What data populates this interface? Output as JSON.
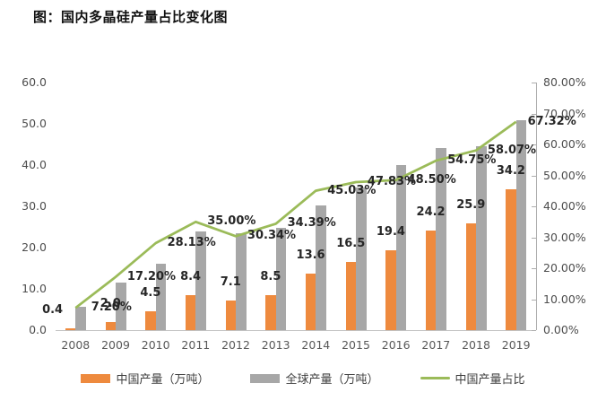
{
  "title": "图：国内多晶硅产量占比变化图",
  "chart_data": {
    "type": "bar",
    "subtype": "grouped-bars-with-line-combo",
    "categories": [
      "2008",
      "2009",
      "2010",
      "2011",
      "2012",
      "2013",
      "2014",
      "2015",
      "2016",
      "2017",
      "2018",
      "2019"
    ],
    "series": [
      {
        "name": "中国产量（万吨）",
        "type": "bar",
        "axis": "left",
        "color": "#EE8A3E",
        "values": [
          0.4,
          2.0,
          4.5,
          8.4,
          7.1,
          8.5,
          13.6,
          16.5,
          19.4,
          24.2,
          25.9,
          34.2
        ],
        "labels": [
          "0.4",
          "2.0",
          "4.5",
          "8.4",
          "7.1",
          "8.5",
          "13.6",
          "16.5",
          "19.4",
          "24.2",
          "25.9",
          "34.2"
        ]
      },
      {
        "name": "全球产量（万吨）",
        "type": "bar",
        "axis": "left",
        "color": "#A7A7A7",
        "values": [
          5.6,
          11.6,
          16.0,
          24.0,
          23.4,
          24.7,
          30.2,
          34.5,
          40.0,
          44.2,
          44.6,
          50.8
        ],
        "labels": []
      },
      {
        "name": "中国产量占比",
        "type": "line",
        "axis": "right",
        "color": "#9BBB59",
        "values": [
          7.2,
          17.2,
          28.13,
          35.0,
          30.34,
          34.39,
          45.03,
          47.83,
          48.5,
          54.75,
          58.07,
          67.32
        ],
        "labels": [
          "7.20%",
          "17.20%",
          "28.13%",
          "35.00%",
          "30.34%",
          "34.39%",
          "45.03%",
          "47.83%",
          "48.50%",
          "54.75%",
          "58.07%",
          "67.32%"
        ]
      }
    ],
    "left_axis": {
      "min": 0,
      "max": 60,
      "ticks": [
        "0.0",
        "10.0",
        "20.0",
        "30.0",
        "40.0",
        "50.0",
        "60.0"
      ]
    },
    "right_axis": {
      "min": 0,
      "max": 80,
      "ticks": [
        "0.00%",
        "10.00%",
        "20.00%",
        "30.00%",
        "40.00%",
        "50.00%",
        "60.00%",
        "70.00%",
        "80.00%"
      ]
    },
    "grid": false,
    "legend_position": "bottom",
    "colors": {
      "background": "#FFFFFF",
      "axis_line": "#C2C2C2",
      "right_axis_line": "#ADADAD",
      "axis_text": "#4D4D4D",
      "year_text": "#595959",
      "data_label_text": "#262626"
    }
  }
}
